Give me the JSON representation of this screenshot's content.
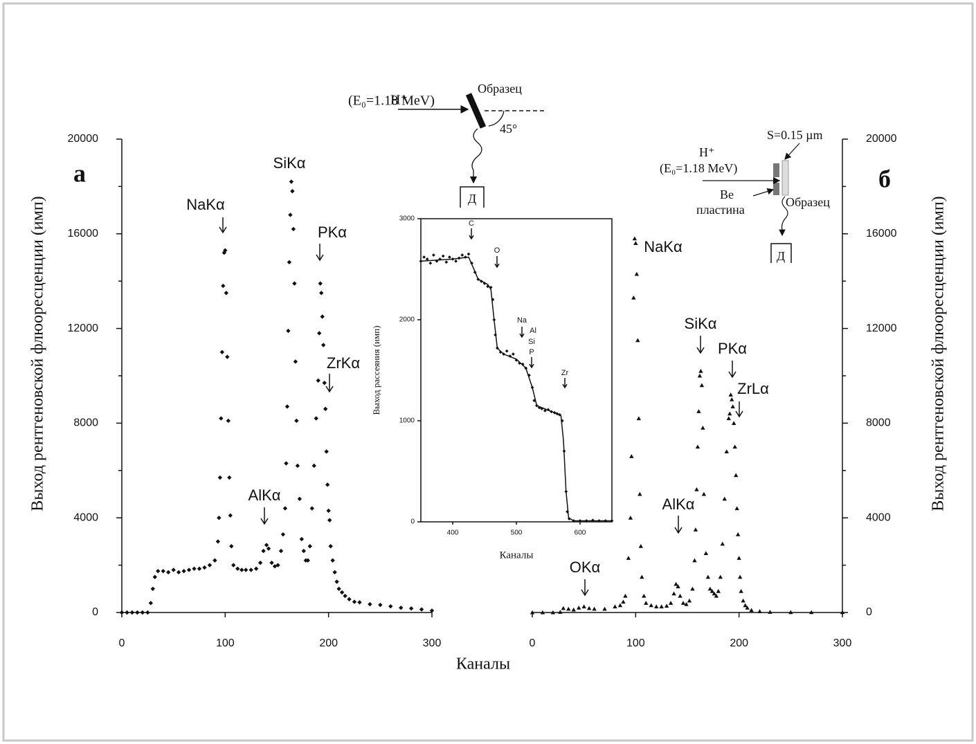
{
  "chart_data": [
    {
      "type": "scatter",
      "panel_label": "а",
      "ylabel": "Выход рентгеновской флюоресценции (имп)",
      "xlabel": "Каналы",
      "xlim": [
        0,
        300
      ],
      "xticks": [
        0,
        100,
        200,
        300
      ],
      "ylim": [
        0,
        20000
      ],
      "yticks": [
        0,
        4000,
        8000,
        12000,
        16000,
        20000
      ],
      "yminorticks": [
        2000,
        6000,
        10000,
        14000,
        18000
      ],
      "annotations": [
        "NaKα",
        "SiKα",
        "PKα",
        "ZrKα",
        "AlKα"
      ],
      "diagram_labels": [
        "H⁺",
        "(E₀=1.18 MeV)",
        "Образец",
        "45°",
        "Д"
      ],
      "series": [
        {
          "marker": "diamond",
          "color": "#111111",
          "x": [
            0,
            5,
            10,
            15,
            20,
            25,
            28,
            30,
            32,
            35,
            40,
            45,
            50,
            55,
            60,
            65,
            70,
            75,
            80,
            85,
            90,
            93,
            94,
            95,
            96,
            97,
            98,
            99,
            100,
            101,
            102,
            103,
            104,
            105,
            106,
            108,
            112,
            116,
            120,
            125,
            130,
            134,
            137,
            140,
            142,
            145,
            148,
            151,
            154,
            156,
            158,
            159,
            160,
            161,
            162,
            163,
            164,
            165,
            166,
            167,
            168,
            169,
            170,
            172,
            174,
            176,
            178,
            180,
            182,
            184,
            186,
            188,
            190,
            191,
            192,
            193,
            194,
            195,
            196,
            197,
            198,
            199,
            200,
            201,
            202,
            204,
            206,
            208,
            210,
            213,
            216,
            220,
            225,
            230,
            240,
            250,
            260,
            270,
            280,
            290,
            300
          ],
          "values": [
            0,
            0,
            0,
            0,
            0,
            0,
            400,
            1000,
            1500,
            1750,
            1750,
            1700,
            1800,
            1700,
            1750,
            1800,
            1850,
            1850,
            1900,
            2000,
            2200,
            3000,
            4000,
            5700,
            8200,
            11000,
            13800,
            15200,
            15300,
            13500,
            10800,
            8100,
            5700,
            4100,
            2800,
            2000,
            1850,
            1800,
            1800,
            1800,
            1850,
            2100,
            2600,
            2850,
            2700,
            2100,
            1950,
            2000,
            2600,
            3300,
            4400,
            6300,
            8700,
            11900,
            14800,
            16800,
            18200,
            17800,
            16200,
            13900,
            10600,
            8100,
            6200,
            4800,
            3100,
            2600,
            2200,
            2200,
            2800,
            4400,
            6200,
            8200,
            9800,
            11800,
            13900,
            13500,
            12500,
            11300,
            9700,
            8600,
            6800,
            5400,
            4300,
            3900,
            2800,
            2200,
            1700,
            1300,
            1000,
            850,
            700,
            560,
            450,
            430,
            350,
            320,
            260,
            200,
            170,
            130,
            80
          ]
        }
      ]
    },
    {
      "type": "scatter",
      "panel_label": "б",
      "ylabel": "Выход рентгеновской флюоресценции (имп)",
      "xlim": [
        0,
        300
      ],
      "xticks": [
        0,
        100,
        200,
        300
      ],
      "ylim": [
        0,
        20000
      ],
      "yticks": [
        0,
        4000,
        8000,
        12000,
        16000,
        20000
      ],
      "yminorticks": [
        2000,
        6000,
        10000,
        14000,
        18000
      ],
      "annotations": [
        "NaKα",
        "SiKα",
        "PKα",
        "ZrLα",
        "AlKα",
        "OKα"
      ],
      "diagram_labels": [
        "S=0.15 µm",
        "H⁺",
        "(E₀=1.18 MeV)",
        "Be",
        "пластина",
        "Образец",
        "Д"
      ],
      "series": [
        {
          "marker": "triangle",
          "color": "#111111",
          "x": [
            0,
            10,
            20,
            27,
            30,
            35,
            40,
            45,
            50,
            55,
            60,
            70,
            80,
            85,
            88,
            90,
            93,
            95,
            96,
            98,
            99,
            100,
            101,
            102,
            103,
            104,
            105,
            106,
            108,
            110,
            115,
            120,
            125,
            130,
            134,
            137,
            139,
            141,
            143,
            146,
            149,
            152,
            155,
            157,
            158,
            159,
            160,
            161,
            162,
            163,
            164,
            165,
            166,
            168,
            170,
            172,
            174,
            176,
            178,
            180,
            182,
            184,
            186,
            188,
            190,
            191,
            192,
            193,
            194,
            195,
            196,
            197,
            198,
            199,
            200,
            201,
            202,
            204,
            206,
            208,
            212,
            220,
            230,
            250,
            270,
            300
          ],
          "values": [
            0,
            0,
            0,
            20,
            180,
            150,
            120,
            200,
            250,
            180,
            150,
            150,
            250,
            300,
            450,
            700,
            2300,
            4000,
            6600,
            13300,
            15800,
            15600,
            14300,
            11500,
            8200,
            5000,
            2800,
            1500,
            700,
            400,
            300,
            250,
            250,
            280,
            400,
            800,
            1200,
            1100,
            700,
            400,
            350,
            500,
            1000,
            2200,
            3500,
            5200,
            7000,
            8500,
            10000,
            10200,
            9600,
            7800,
            5000,
            2500,
            1500,
            1000,
            900,
            800,
            700,
            900,
            1500,
            2900,
            4800,
            6800,
            8200,
            8400,
            9200,
            9000,
            8700,
            8000,
            7000,
            5800,
            4400,
            3300,
            2300,
            1500,
            900,
            500,
            300,
            200,
            100,
            50,
            20,
            10,
            10,
            10
          ]
        }
      ]
    },
    {
      "type": "scatter",
      "ylabel": "Выход рассеяния (имп)",
      "xlabel": "Каналы",
      "xlim": [
        350,
        650
      ],
      "xticks": [
        400,
        500,
        600
      ],
      "ylim": [
        0,
        3000
      ],
      "yticks": [
        0,
        1000,
        2000,
        3000
      ],
      "annotations": [
        "C",
        "O",
        "Na",
        "Al",
        "Si",
        "P",
        "Zr"
      ],
      "series": [
        {
          "marker": "diamond",
          "color": "#111111",
          "x": [
            350,
            355,
            360,
            365,
            370,
            375,
            380,
            385,
            390,
            395,
            400,
            405,
            410,
            415,
            420,
            425,
            430,
            435,
            440,
            445,
            450,
            455,
            460,
            463,
            465,
            467,
            470,
            475,
            480,
            485,
            490,
            495,
            500,
            505,
            510,
            515,
            520,
            525,
            528,
            532,
            536,
            540,
            545,
            550,
            555,
            560,
            564,
            568,
            572,
            575,
            578,
            580,
            583,
            590,
            600,
            610,
            620,
            630,
            640,
            650
          ],
          "values": [
            2580,
            2620,
            2600,
            2560,
            2640,
            2580,
            2600,
            2630,
            2570,
            2620,
            2600,
            2580,
            2610,
            2640,
            2620,
            2650,
            2560,
            2470,
            2400,
            2380,
            2360,
            2330,
            2320,
            2200,
            2000,
            1850,
            1720,
            1680,
            1660,
            1690,
            1640,
            1660,
            1600,
            1570,
            1560,
            1520,
            1450,
            1330,
            1200,
            1150,
            1130,
            1120,
            1100,
            1110,
            1090,
            1080,
            1070,
            1060,
            1000,
            700,
            300,
            100,
            30,
            10,
            10,
            10,
            15,
            10,
            10,
            10
          ]
        },
        {
          "mode": "line",
          "color": "#111111",
          "x": [
            350,
            400,
            425,
            432,
            440,
            455,
            460,
            465,
            470,
            480,
            500,
            515,
            525,
            532,
            560,
            570,
            574,
            578,
            582,
            590,
            650
          ],
          "values": [
            2580,
            2600,
            2620,
            2520,
            2400,
            2350,
            2300,
            2000,
            1720,
            1660,
            1610,
            1520,
            1330,
            1150,
            1080,
            1050,
            800,
            300,
            40,
            10,
            10
          ]
        }
      ]
    }
  ]
}
